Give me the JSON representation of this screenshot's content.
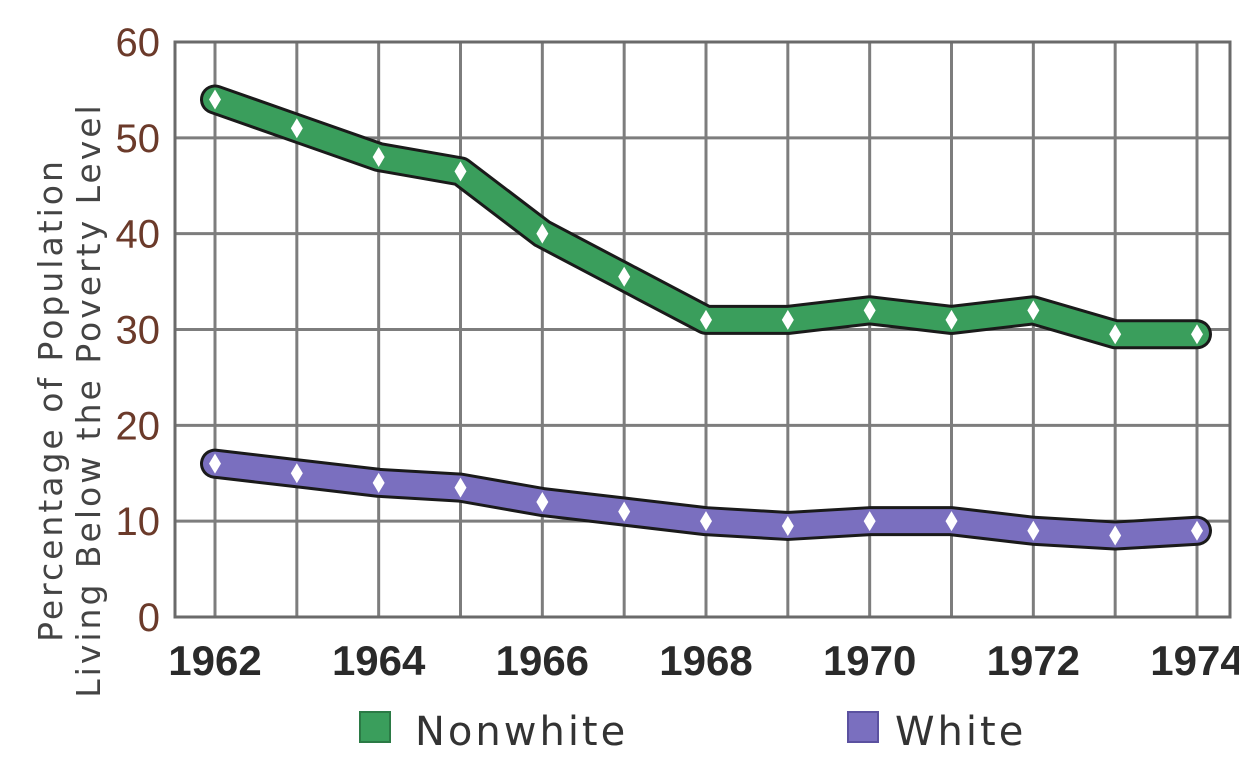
{
  "chart_data": {
    "type": "line",
    "ylabel_line1": "Percentage of Population",
    "ylabel_line2": "Living Below the Poverty Level",
    "ylim": [
      0,
      60
    ],
    "yticks": [
      0,
      10,
      20,
      30,
      40,
      50,
      60
    ],
    "xlim": [
      1962,
      1974
    ],
    "x": [
      1962,
      1963,
      1964,
      1965,
      1966,
      1967,
      1968,
      1969,
      1970,
      1971,
      1972,
      1973,
      1974
    ],
    "xtick_labels": [
      "1962",
      "1964",
      "1966",
      "1968",
      "1970",
      "1972",
      "1974"
    ],
    "grid": true,
    "legend_position": "bottom",
    "series": [
      {
        "name": "Nonwhite",
        "color": "#3a9e5c",
        "values": [
          54,
          51,
          48,
          46.5,
          40,
          35.5,
          31,
          31,
          32,
          31,
          32,
          29.5,
          29.5
        ]
      },
      {
        "name": "White",
        "color": "#7a6fbf",
        "values": [
          16,
          15,
          14,
          13.5,
          12,
          11,
          10,
          9.5,
          10,
          10,
          9,
          8.5,
          9
        ]
      }
    ]
  }
}
